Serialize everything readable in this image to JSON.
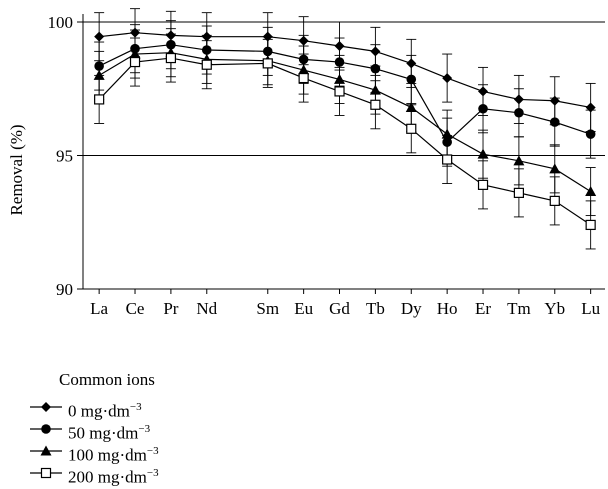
{
  "chart_data": {
    "type": "line",
    "xlabel": "",
    "ylabel": "Removal (%)",
    "ylim": [
      90,
      100
    ],
    "yticks": [
      90,
      95,
      100
    ],
    "reference_lines": [
      95,
      100
    ],
    "grid": false,
    "categories": [
      "La",
      "Ce",
      "Pr",
      "Nd",
      "Sm",
      "Eu",
      "Gd",
      "Tb",
      "Dy",
      "Ho",
      "Er",
      "Tm",
      "Yb",
      "Lu"
    ],
    "category_positions": [
      1,
      2,
      3,
      4,
      5.7,
      6.7,
      7.7,
      8.7,
      9.7,
      10.7,
      11.7,
      12.7,
      13.7,
      14.7
    ],
    "legend": {
      "title": "Common ions",
      "placement": "below-left"
    },
    "series": [
      {
        "name": "0 mg·dm",
        "unit_exp": "−3",
        "marker": "diamond",
        "values": [
          99.45,
          99.6,
          99.5,
          99.45,
          99.45,
          99.3,
          99.1,
          98.9,
          98.45,
          97.9,
          97.4,
          97.1,
          97.05,
          96.8
        ],
        "errors": [
          0.9,
          0.9,
          0.9,
          0.9,
          0.9,
          0.9,
          0.9,
          0.9,
          0.9,
          0.9,
          0.9,
          0.9,
          0.9,
          0.9
        ]
      },
      {
        "name": "50 mg·dm",
        "unit_exp": "−3",
        "marker": "circle",
        "values": [
          98.35,
          99.0,
          99.15,
          98.95,
          98.9,
          98.6,
          98.5,
          98.25,
          97.85,
          95.5,
          96.75,
          96.6,
          96.25,
          95.8
        ],
        "errors": [
          0.9,
          0.9,
          0.9,
          0.9,
          0.9,
          0.9,
          0.9,
          0.9,
          0.9,
          0.9,
          0.9,
          0.9,
          0.9,
          0.9
        ]
      },
      {
        "name": "100 mg·dm",
        "unit_exp": "−3",
        "marker": "triangle",
        "values": [
          98.0,
          98.8,
          98.85,
          98.6,
          98.55,
          98.2,
          97.85,
          97.45,
          96.8,
          95.8,
          95.05,
          94.8,
          94.5,
          93.65
        ],
        "errors": [
          0.9,
          0.9,
          0.9,
          0.9,
          0.9,
          0.9,
          0.9,
          0.9,
          0.9,
          0.9,
          0.9,
          0.9,
          0.9,
          0.9
        ]
      },
      {
        "name": "200 mg·dm",
        "unit_exp": "−3",
        "marker": "square-open",
        "values": [
          97.1,
          98.5,
          98.65,
          98.4,
          98.45,
          97.9,
          97.4,
          96.9,
          96.0,
          94.85,
          93.9,
          93.6,
          93.3,
          92.4
        ],
        "errors": [
          0.9,
          0.9,
          0.9,
          0.9,
          0.9,
          0.9,
          0.9,
          0.9,
          0.9,
          0.9,
          0.9,
          0.9,
          0.9,
          0.9
        ]
      }
    ]
  }
}
